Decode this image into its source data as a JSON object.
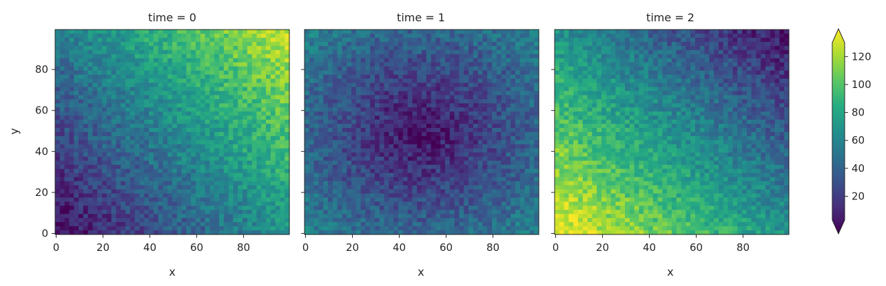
{
  "chart_data": {
    "type": "heatmap",
    "colormap": "viridis",
    "panels": [
      {
        "title": "time = 0",
        "pattern": "gradient-diagonal",
        "description_values": {
          "corner_bottom_left": 5,
          "corner_top_right": 125
        }
      },
      {
        "title": "time = 1",
        "pattern": "low-center",
        "description_values": {
          "center": 5,
          "corners": 60
        }
      },
      {
        "title": "time = 2",
        "pattern": "gradient-diagonal-reverse",
        "description_values": {
          "corner_bottom_left": 125,
          "corner_top_right": 5
        }
      }
    ],
    "x_ticks": [
      "0",
      "20",
      "40",
      "60",
      "80"
    ],
    "y_ticks": [
      "0",
      "20",
      "40",
      "60",
      "80"
    ],
    "xlim": [
      0,
      99
    ],
    "ylim": [
      0,
      99
    ],
    "xlabel": "x",
    "ylabel": "y",
    "colorbar": {
      "ticks": [
        "20",
        "40",
        "60",
        "80",
        "100",
        "120"
      ],
      "range": [
        3,
        130
      ],
      "extend": "both"
    }
  }
}
